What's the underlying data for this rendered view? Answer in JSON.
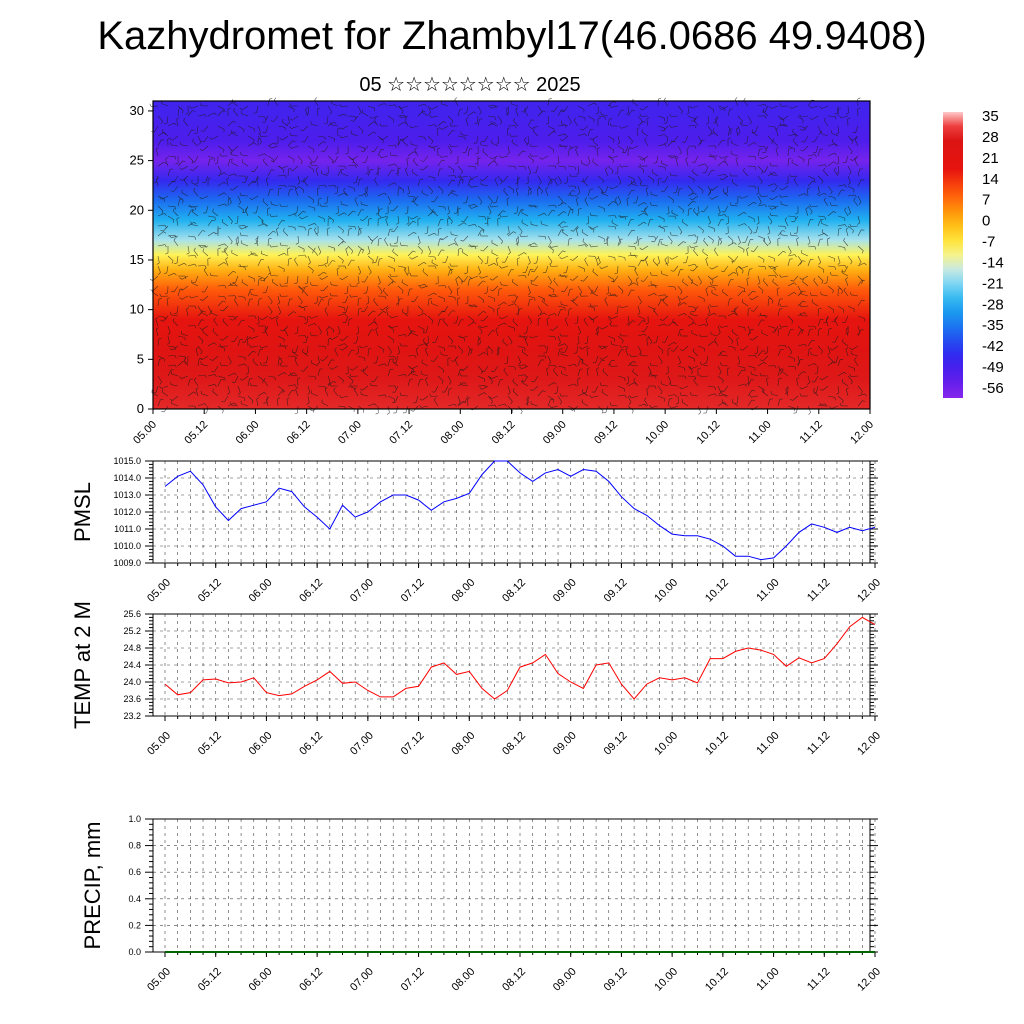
{
  "title": "Kazhydromet for Zhambyl17(46.0686 49.9408)",
  "subtitle": "05 ☆☆☆☆☆☆☆☆ 2025",
  "chart_data": [
    {
      "type": "heatmap",
      "name": "vertical cross-section",
      "x_ticks": [
        "05.00",
        "05.12",
        "06.00",
        "06.12",
        "07.00",
        "07.12",
        "08.00",
        "08.12",
        "09.00",
        "09.12",
        "10.00",
        "10.12",
        "11.00",
        "11.12",
        "12.00"
      ],
      "y_ticks": [
        0,
        5,
        10,
        15,
        20,
        25,
        30
      ],
      "ylim": [
        0,
        31
      ],
      "colorbar_labels": [
        "35",
        "28",
        "21",
        "14",
        "7",
        "0",
        "-7",
        "-14",
        "-21",
        "-28",
        "-35",
        "-42",
        "-49",
        "-56"
      ],
      "colorbar_range": [
        -63,
        42
      ],
      "temperature_profile": [
        {
          "y": 0,
          "v": 34
        },
        {
          "y": 3,
          "v": 32
        },
        {
          "y": 6,
          "v": 28
        },
        {
          "y": 9,
          "v": 21
        },
        {
          "y": 12,
          "v": 12
        },
        {
          "y": 14,
          "v": 2
        },
        {
          "y": 15.5,
          "v": -8
        },
        {
          "y": 17,
          "v": -18
        },
        {
          "y": 19,
          "v": -28
        },
        {
          "y": 21,
          "v": -38
        },
        {
          "y": 23,
          "v": -48
        },
        {
          "y": 25,
          "v": -60
        },
        {
          "y": 27,
          "v": -53
        },
        {
          "y": 31,
          "v": -50
        }
      ],
      "wind_barbs": true
    },
    {
      "type": "line",
      "ylabel": "PMSL",
      "ylim": [
        1009.0,
        1015.0
      ],
      "y_ticks": [
        "1009.0",
        "1010.0",
        "1011.0",
        "1012.0",
        "1013.0",
        "1014.0",
        "1015.0"
      ],
      "x_ticks": [
        "05.00",
        "05.12",
        "06.00",
        "06.12",
        "07.00",
        "07.12",
        "08.00",
        "08.12",
        "09.00",
        "09.12",
        "10.00",
        "10.12",
        "11.00",
        "11.12",
        "12.00"
      ],
      "color": "#0000ff",
      "series": [
        {
          "values": [
            1013.5,
            1014.1,
            1014.4,
            1013.6,
            1012.3,
            1011.5,
            1012.2,
            1012.4,
            1012.6,
            1013.4,
            1013.2,
            1012.3,
            1011.7,
            1011.0,
            1012.4,
            1011.7,
            1012.0,
            1012.6,
            1013.0,
            1013.0,
            1012.7,
            1012.1,
            1012.6,
            1012.8,
            1013.1,
            1014.2,
            1015.0,
            1015.0,
            1014.3,
            1013.8,
            1014.3,
            1014.5,
            1014.1,
            1014.5,
            1014.4,
            1013.8,
            1012.9,
            1012.2,
            1011.8,
            1011.2,
            1010.7,
            1010.6,
            1010.6,
            1010.4,
            1010.0,
            1009.4,
            1009.4,
            1009.2,
            1009.3,
            1010.0,
            1010.8,
            1011.3,
            1011.1,
            1010.8,
            1011.1,
            1010.9,
            1011.1
          ]
        }
      ]
    },
    {
      "type": "line",
      "ylabel": "TEMP at 2 M",
      "ylim": [
        23.2,
        25.6
      ],
      "y_ticks": [
        "23.2",
        "23.6",
        "24.0",
        "24.4",
        "24.8",
        "25.2",
        "25.6"
      ],
      "x_ticks": [
        "05.00",
        "05.12",
        "06.00",
        "06.12",
        "07.00",
        "07.12",
        "08.00",
        "08.12",
        "09.00",
        "09.12",
        "10.00",
        "10.12",
        "11.00",
        "11.12",
        "12.00"
      ],
      "color": "#ff0000",
      "series": [
        {
          "values": [
            23.95,
            23.7,
            23.75,
            24.05,
            24.07,
            23.98,
            24.0,
            24.1,
            23.75,
            23.68,
            23.72,
            23.9,
            24.05,
            24.25,
            23.97,
            24.0,
            23.8,
            23.65,
            23.65,
            23.85,
            23.9,
            24.35,
            24.45,
            24.18,
            24.25,
            23.85,
            23.6,
            23.8,
            24.35,
            24.45,
            24.65,
            24.2,
            24.0,
            23.85,
            24.4,
            24.45,
            23.95,
            23.6,
            23.95,
            24.1,
            24.05,
            24.1,
            23.98,
            24.55,
            24.55,
            24.72,
            24.8,
            24.75,
            24.65,
            24.37,
            24.57,
            24.45,
            24.55,
            24.9,
            25.3,
            25.52,
            25.35
          ]
        }
      ]
    },
    {
      "type": "line",
      "ylabel": "PRECIP, mm",
      "ylim": [
        0.0,
        1.0
      ],
      "y_ticks": [
        "0.0",
        "0.2",
        "0.4",
        "0.6",
        "0.8",
        "1.0"
      ],
      "x_ticks": [
        "05.00",
        "05.12",
        "06.00",
        "06.12",
        "07.00",
        "07.12",
        "08.00",
        "08.12",
        "09.00",
        "09.12",
        "10.00",
        "10.12",
        "11.00",
        "11.12",
        "12.00"
      ],
      "color": "#006400",
      "series": [
        {
          "values": [
            0,
            0,
            0,
            0,
            0,
            0,
            0,
            0,
            0,
            0,
            0,
            0,
            0,
            0,
            0,
            0,
            0,
            0,
            0,
            0,
            0,
            0,
            0,
            0,
            0,
            0,
            0,
            0,
            0,
            0,
            0,
            0,
            0,
            0,
            0,
            0,
            0,
            0,
            0,
            0,
            0,
            0,
            0,
            0,
            0,
            0,
            0,
            0,
            0,
            0,
            0,
            0,
            0,
            0,
            0,
            0,
            0
          ]
        }
      ]
    }
  ]
}
